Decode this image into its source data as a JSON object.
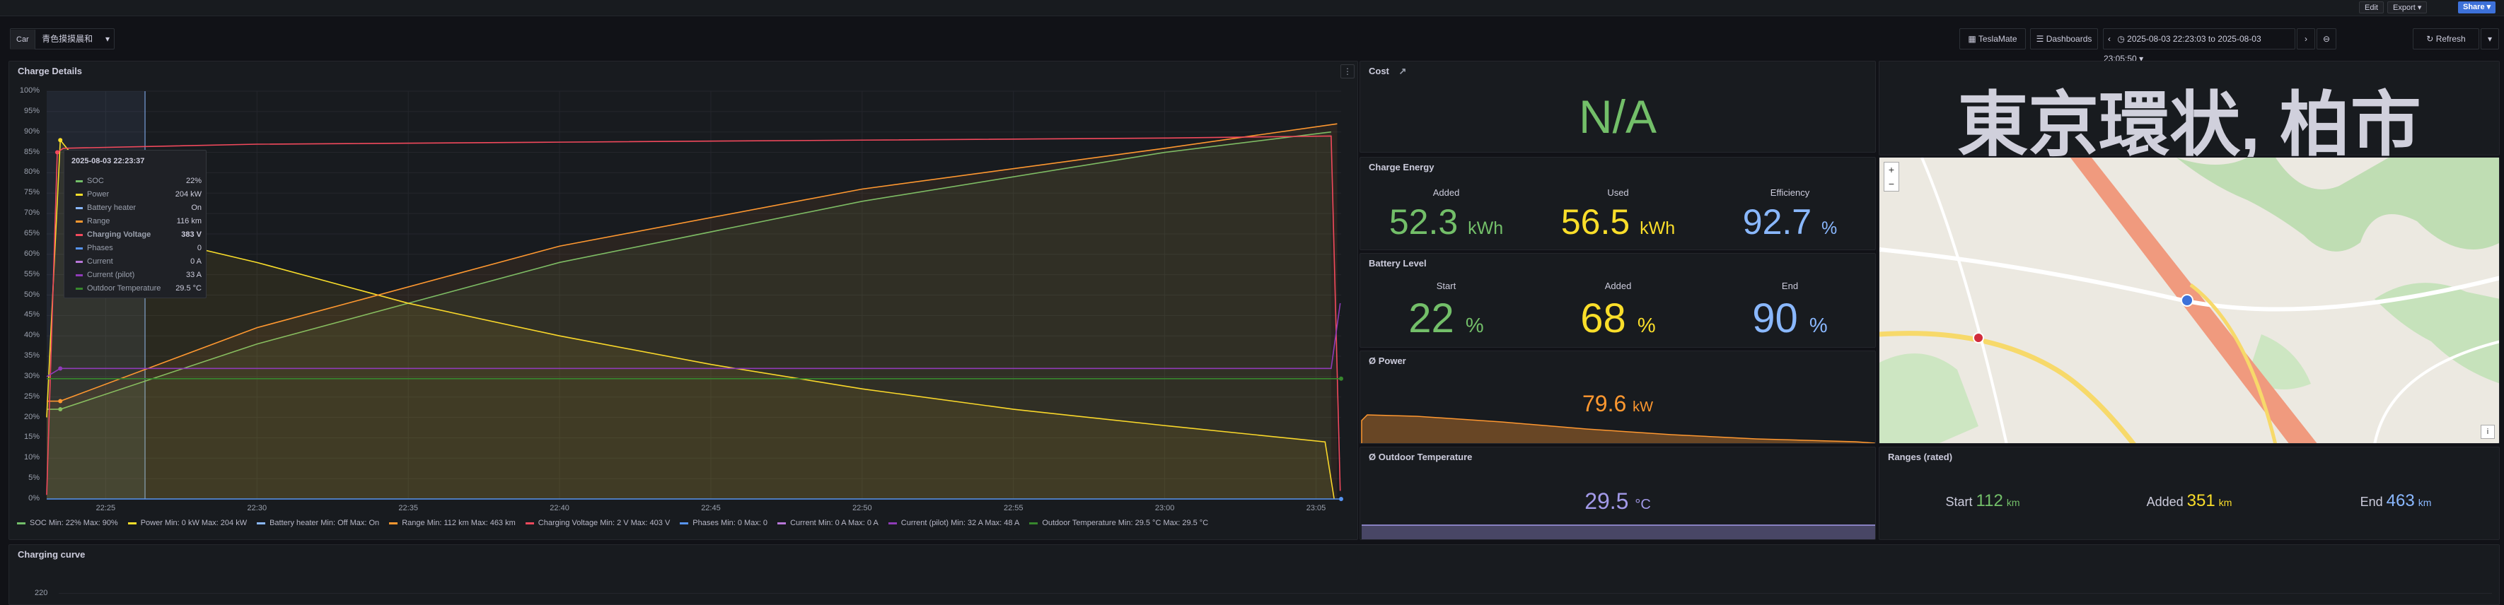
{
  "topbar": {
    "edit": "Edit",
    "export": "Export",
    "share": "Share"
  },
  "controls": {
    "car_label": "Car",
    "car_value": "青色摸摸晨和",
    "teslamate": "TeslaMate",
    "dashboards": "Dashboards",
    "time_range": "2025-08-03 22:23:03 to 2025-08-03 23:05:50",
    "refresh": "Refresh"
  },
  "charge_details": {
    "title": "Charge Details",
    "tooltip": {
      "time": "2025-08-03 22:23:37",
      "rows": [
        {
          "name": "SOC",
          "value": "22%",
          "color": "#73bf69"
        },
        {
          "name": "Power",
          "value": "204 kW",
          "color": "#fade2a"
        },
        {
          "name": "Battery heater",
          "value": "On",
          "color": "#8ab8ff"
        },
        {
          "name": "Range",
          "value": "116 km",
          "color": "#ff9830"
        },
        {
          "name": "Charging Voltage",
          "value": "383 V",
          "color": "#f2495c"
        },
        {
          "name": "Phases",
          "value": "0",
          "color": "#5794f2"
        },
        {
          "name": "Current",
          "value": "0 A",
          "color": "#b877d9"
        },
        {
          "name": "Current (pilot)",
          "value": "33 A",
          "color": "#8f3bb8"
        },
        {
          "name": "Outdoor Temperature",
          "value": "29.5 °C",
          "color": "#37872d"
        }
      ]
    },
    "legend": [
      {
        "text": "SOC   Min: 22%   Max: 90%",
        "color": "#73bf69"
      },
      {
        "text": "Power   Min: 0 kW   Max: 204 kW",
        "color": "#fade2a"
      },
      {
        "text": "Battery heater   Min: Off   Max: On",
        "color": "#8ab8ff"
      },
      {
        "text": "Range   Min: 112 km   Max: 463 km",
        "color": "#ff9830"
      },
      {
        "text": "Charging Voltage   Min: 2 V   Max: 403 V",
        "color": "#f2495c"
      },
      {
        "text": "Phases   Min: 0   Max: 0",
        "color": "#5794f2"
      },
      {
        "text": "Current   Min: 0 A   Max: 0 A",
        "color": "#b877d9"
      },
      {
        "text": "Current (pilot)   Min: 32 A   Max: 48 A",
        "color": "#8f3bb8"
      },
      {
        "text": "Outdoor Temperature   Min: 29.5 °C   Max: 29.5 °C",
        "color": "#37872d"
      }
    ]
  },
  "chart_data": {
    "type": "line",
    "title": "Charge Details",
    "y_ticks": [
      "0%",
      "5%",
      "10%",
      "15%",
      "20%",
      "25%",
      "30%",
      "35%",
      "40%",
      "45%",
      "50%",
      "55%",
      "60%",
      "65%",
      "70%",
      "75%",
      "80%",
      "85%",
      "90%",
      "95%",
      "100%"
    ],
    "ylim": [
      0,
      100
    ],
    "x_ticks": [
      "22:25",
      "22:30",
      "22:35",
      "22:40",
      "22:45",
      "22:50",
      "22:55",
      "23:00",
      "23:05"
    ],
    "x_tick_minutes": [
      25,
      30,
      35,
      40,
      45,
      50,
      55,
      60,
      65
    ],
    "xlim_minutes": [
      23.05,
      65.83
    ],
    "series": [
      {
        "name": "SOC",
        "color": "#73bf69",
        "x": [
          23.05,
          23.5,
          30,
          40,
          50,
          60,
          65.5
        ],
        "y": [
          22,
          22,
          38,
          58,
          73,
          85,
          90
        ]
      },
      {
        "name": "Power",
        "color": "#fade2a",
        "x": [
          23.05,
          23.5,
          26,
          30,
          35,
          40,
          45,
          50,
          55,
          60,
          65.3,
          65.6
        ],
        "y": [
          20,
          88,
          65,
          58,
          48,
          40,
          33,
          27,
          22,
          18,
          14,
          0
        ]
      },
      {
        "name": "Range",
        "color": "#ff9830",
        "x": [
          23.05,
          23.5,
          30,
          40,
          50,
          60,
          65.7
        ],
        "y": [
          24,
          24,
          42,
          62,
          76,
          86,
          92
        ]
      },
      {
        "name": "Charging Voltage",
        "color": "#f2495c",
        "x": [
          23.05,
          23.4,
          23.6,
          30,
          40,
          50,
          60,
          65.5,
          65.8
        ],
        "y": [
          1,
          85,
          86,
          87,
          87.5,
          88,
          88.5,
          89,
          2
        ]
      },
      {
        "name": "Current (pilot)",
        "color": "#8f3bb8",
        "x": [
          23.05,
          23.5,
          65.5,
          65.8
        ],
        "y": [
          30,
          32,
          32,
          48
        ]
      },
      {
        "name": "Outdoor Temperature",
        "color": "#37872d",
        "x": [
          23.05,
          65.83
        ],
        "y": [
          29.5,
          29.5
        ]
      },
      {
        "name": "Phases",
        "color": "#5794f2",
        "x": [
          23.05,
          65.83
        ],
        "y": [
          0,
          0
        ]
      }
    ]
  },
  "cost": {
    "title": "Cost",
    "value": "N/A"
  },
  "location": {
    "text": "東京環状, 柏市"
  },
  "charge_energy": {
    "title": "Charge Energy",
    "added_label": "Added",
    "added_value": "52.3",
    "added_unit": "kWh",
    "used_label": "Used",
    "used_value": "56.5",
    "used_unit": "kWh",
    "eff_label": "Efficiency",
    "eff_value": "92.7",
    "eff_unit": "%"
  },
  "battery_level": {
    "title": "Battery Level",
    "start_label": "Start",
    "start_value": "22",
    "start_unit": "%",
    "added_label": "Added",
    "added_value": "68",
    "added_unit": "%",
    "end_label": "End",
    "end_value": "90",
    "end_unit": "%"
  },
  "avg_power": {
    "title": "Ø Power",
    "value": "79.6",
    "unit": "kW"
  },
  "outdoor_temp": {
    "title": "Ø Outdoor Temperature",
    "value": "29.5",
    "unit": "°C"
  },
  "ranges": {
    "title": "Ranges (rated)",
    "start_label": "Start",
    "start_value": "112",
    "start_unit": "km",
    "added_label": "Added",
    "added_value": "351",
    "added_unit": "km",
    "end_label": "End",
    "end_value": "463",
    "end_unit": "km"
  },
  "charging_curve": {
    "title": "Charging curve",
    "y_tick": "220"
  },
  "colors": {
    "green": "#73bf69",
    "yellow": "#fade2a",
    "blue": "#8ab8ff",
    "orange": "#ff9830",
    "purple": "#a299e8"
  }
}
